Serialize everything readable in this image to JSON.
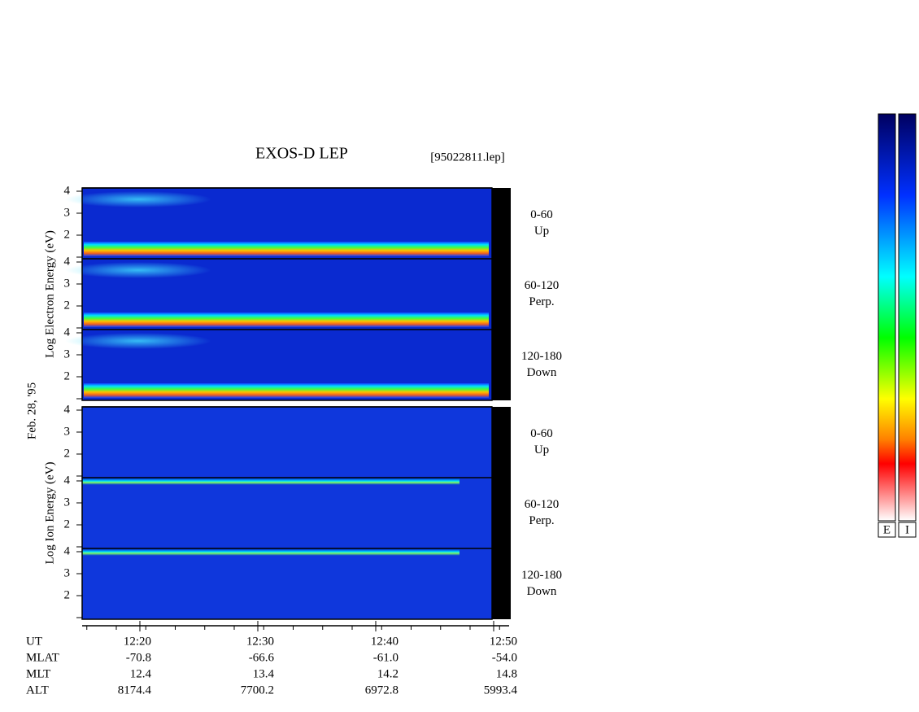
{
  "title": "EXOS-D LEP",
  "file": "[95022811.lep]",
  "date": "Feb. 28, '95",
  "electron": {
    "axis_label": "Log Electron Energy (eV)",
    "panels": [
      {
        "angle": "0-60",
        "direction": "Up"
      },
      {
        "angle": "60-120",
        "direction": "Perp."
      },
      {
        "angle": "120-180",
        "direction": "Down"
      }
    ]
  },
  "ion": {
    "axis_label": "Log Ion Energy (eV)",
    "panels": [
      {
        "angle": "0-60",
        "direction": "Up"
      },
      {
        "angle": "60-120",
        "direction": "Perp."
      },
      {
        "angle": "120-180",
        "direction": "Down"
      }
    ]
  },
  "energy_ticks": [
    2,
    3,
    4
  ],
  "time_axis": {
    "label": "UT",
    "ticks": [
      "12:20",
      "12:30",
      "12:40",
      "12:50"
    ]
  },
  "ephemeris": [
    {
      "name": "MLAT",
      "values": [
        "-70.8",
        "-66.6",
        "-61.0",
        "-54.0"
      ]
    },
    {
      "name": "MLT",
      "values": [
        "12.4",
        "13.4",
        "14.2",
        "14.8"
      ]
    },
    {
      "name": "ALT",
      "values": [
        "8174.4",
        "7700.2",
        "6972.8",
        "5993.4"
      ]
    }
  ],
  "colorbars": [
    "E",
    "I"
  ]
}
